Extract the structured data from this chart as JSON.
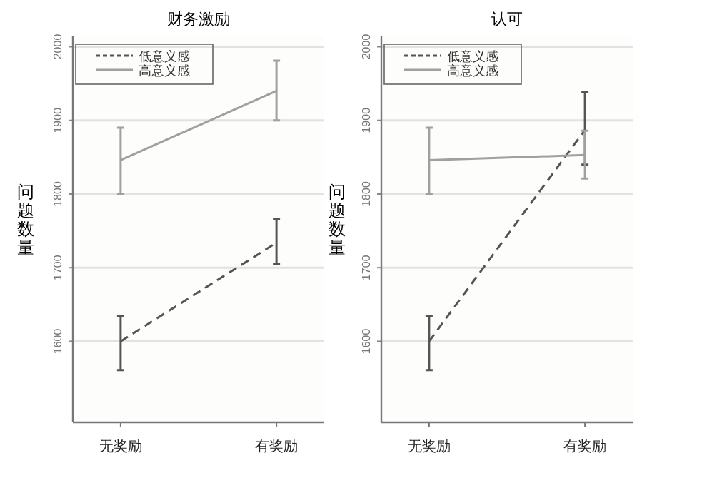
{
  "chart_data": [
    {
      "type": "line",
      "title": "财务激励",
      "ylabel": "问题数量",
      "categories": [
        "无奖励",
        "有奖励"
      ],
      "ylim": [
        1490,
        2015
      ],
      "yticks": [
        1600,
        1700,
        1800,
        1900,
        2000
      ],
      "grid": "y",
      "legend": "top left",
      "marker": "none",
      "series": [
        {
          "name": "低意义感",
          "color": "#555555",
          "line_style": "dashed",
          "values": [
            1600,
            1734
          ],
          "errors": [
            [
              1561,
              1634
            ],
            [
              1705,
              1766
            ]
          ]
        },
        {
          "name": "高意义感",
          "color": "#a0a0a0",
          "line_style": "solid",
          "values": [
            1846,
            1940
          ],
          "errors": [
            [
              1800,
              1890
            ],
            [
              1900,
              1981
            ]
          ]
        }
      ]
    },
    {
      "type": "line",
      "title": "认可",
      "ylabel": "问题数量",
      "categories": [
        "无奖励",
        "有奖励"
      ],
      "ylim": [
        1490,
        2015
      ],
      "yticks": [
        1600,
        1700,
        1800,
        1900,
        2000
      ],
      "grid": "y",
      "legend": "top left",
      "marker": "none",
      "series": [
        {
          "name": "低意义感",
          "color": "#555555",
          "line_style": "dashed",
          "values": [
            1600,
            1887
          ],
          "errors": [
            [
              1561,
              1634
            ],
            [
              1840,
              1938
            ]
          ]
        },
        {
          "name": "高意义感",
          "color": "#a0a0a0",
          "line_style": "solid",
          "values": [
            1846,
            1853
          ],
          "errors": [
            [
              1800,
              1890
            ],
            [
              1821,
              1886
            ]
          ]
        }
      ]
    }
  ]
}
